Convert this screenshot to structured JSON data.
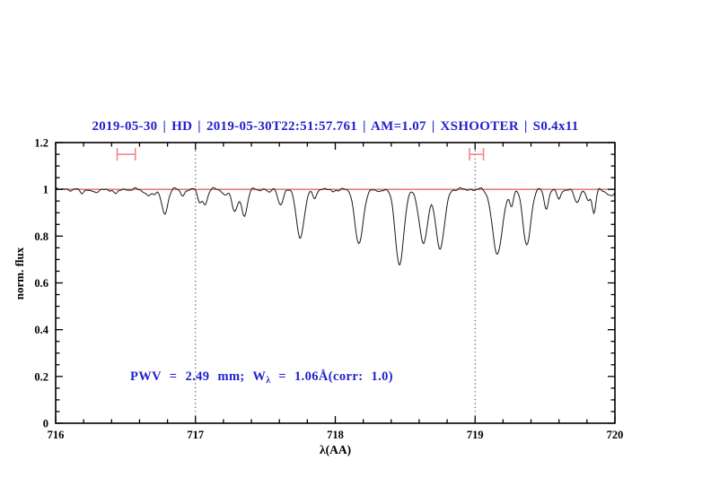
{
  "title": "2019-05-30 | HD | 2019-05-30T22:51:57.761 | AM=1.07 | XSHOOTER | S0.4x11",
  "colors": {
    "accent_blue": "#2222cc",
    "continuum_red": "#e06a6a",
    "marker_red": "#ee8a8a",
    "spectrum_black": "#1a1a1a",
    "guide_gray": "#333333"
  },
  "chart_data": {
    "type": "line",
    "title": "2019-05-30 | HD | 2019-05-30T22:51:57.761 | AM=1.07 | XSHOOTER | S0.4x11",
    "xlabel": "λ(AA)",
    "ylabel": "norm. flux",
    "xlim": [
      716,
      720
    ],
    "ylim": [
      0,
      1.2
    ],
    "grid": "off",
    "x_ticks": {
      "major": [
        716,
        717,
        718,
        719,
        720
      ],
      "labels": [
        "716",
        "717",
        "718",
        "719",
        "720"
      ],
      "minor_step": 0.2
    },
    "y_ticks": {
      "major": [
        0,
        0.2,
        0.4,
        0.6,
        0.8,
        1,
        1.2
      ],
      "labels": [
        "0",
        "0.2",
        "0.4",
        "0.6",
        "0.8",
        "1",
        "1.2"
      ],
      "minor_step": 0.05
    },
    "annotation": {
      "prefix": "PWV = 2.49 mm; W",
      "sub": "λ",
      "suffix": " = 1.06Å(corr: 1.0)"
    },
    "dotted_guides_x": [
      717,
      719
    ],
    "continuum_level": 1.0,
    "range_markers": [
      {
        "x_start": 716.44,
        "x_end": 716.57,
        "y": 1.15
      },
      {
        "x_start": 718.96,
        "x_end": 719.06,
        "y": 1.15
      }
    ],
    "spectrum_model": {
      "description": "telluric absorption spectrum: continuum 1.0 minus Gaussian lines (center Å, depth, sigma Å)",
      "sample_step": 0.008,
      "noise_components": [
        {
          "amp": 0.0035,
          "freq": 46,
          "phase": 0
        },
        {
          "amp": 0.0028,
          "freq": 89,
          "phase": 1.3
        },
        {
          "amp": 0.0018,
          "freq": 157,
          "phase": 0.7
        }
      ],
      "lines": [
        {
          "center": 716.19,
          "depth": 0.018,
          "sigma": 0.015
        },
        {
          "center": 716.29,
          "depth": 0.02,
          "sigma": 0.015
        },
        {
          "center": 716.43,
          "depth": 0.022,
          "sigma": 0.015
        },
        {
          "center": 716.66,
          "depth": 0.022,
          "sigma": 0.028
        },
        {
          "center": 716.71,
          "depth": 0.022,
          "sigma": 0.014
        },
        {
          "center": 716.78,
          "depth": 0.105,
          "sigma": 0.021
        },
        {
          "center": 716.91,
          "depth": 0.026,
          "sigma": 0.014
        },
        {
          "center": 717.03,
          "depth": 0.05,
          "sigma": 0.016
        },
        {
          "center": 717.07,
          "depth": 0.062,
          "sigma": 0.016
        },
        {
          "center": 717.21,
          "depth": 0.025,
          "sigma": 0.015
        },
        {
          "center": 717.28,
          "depth": 0.1,
          "sigma": 0.02
        },
        {
          "center": 717.35,
          "depth": 0.115,
          "sigma": 0.02
        },
        {
          "center": 717.53,
          "depth": 0.015,
          "sigma": 0.012
        },
        {
          "center": 717.61,
          "depth": 0.065,
          "sigma": 0.018
        },
        {
          "center": 717.75,
          "depth": 0.205,
          "sigma": 0.028
        },
        {
          "center": 717.85,
          "depth": 0.042,
          "sigma": 0.012
        },
        {
          "center": 717.98,
          "depth": 0.012,
          "sigma": 0.012
        },
        {
          "center": 718.17,
          "depth": 0.23,
          "sigma": 0.03
        },
        {
          "center": 718.33,
          "depth": 0.012,
          "sigma": 0.015
        },
        {
          "center": 718.46,
          "depth": 0.325,
          "sigma": 0.03
        },
        {
          "center": 718.63,
          "depth": 0.235,
          "sigma": 0.03
        },
        {
          "center": 718.75,
          "depth": 0.26,
          "sigma": 0.03
        },
        {
          "center": 719.16,
          "depth": 0.28,
          "sigma": 0.035
        },
        {
          "center": 719.26,
          "depth": 0.07,
          "sigma": 0.013
        },
        {
          "center": 719.37,
          "depth": 0.235,
          "sigma": 0.028
        },
        {
          "center": 719.51,
          "depth": 0.08,
          "sigma": 0.016
        },
        {
          "center": 719.6,
          "depth": 0.048,
          "sigma": 0.013
        },
        {
          "center": 719.73,
          "depth": 0.062,
          "sigma": 0.018
        },
        {
          "center": 719.81,
          "depth": 0.05,
          "sigma": 0.013
        },
        {
          "center": 719.85,
          "depth": 0.105,
          "sigma": 0.013
        },
        {
          "center": 719.97,
          "depth": 0.03,
          "sigma": 0.025
        }
      ]
    }
  }
}
